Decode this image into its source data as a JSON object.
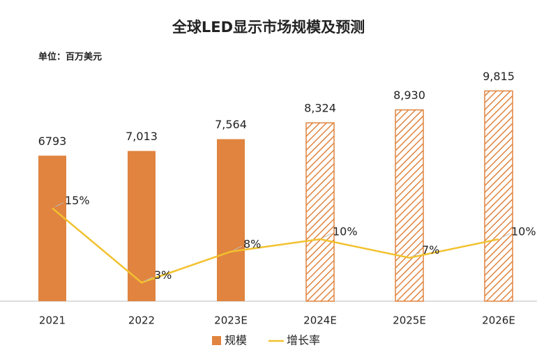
{
  "chart_data": {
    "type": "bar_line",
    "title": "全球LED显示市场规模及预测",
    "subtitle": "单位：百万美元",
    "categories": [
      "2021",
      "2022",
      "2023E",
      "2024E",
      "2025E",
      "2026E"
    ],
    "series": [
      {
        "name": "规模",
        "color": "#e0843f",
        "values": [
          6793,
          7013,
          7564,
          8324,
          8930,
          9815
        ],
        "value_labels": [
          "6793",
          "7,013",
          "7,564",
          "8,324",
          "8,930",
          "9,815"
        ],
        "hatched": [
          false,
          false,
          false,
          true,
          true,
          true
        ]
      },
      {
        "name": "增长率",
        "color": "#f2c12e",
        "axis": "y2",
        "values": [
          15,
          3,
          8,
          10,
          7,
          10
        ],
        "value_labels": [
          "15%",
          "3%",
          "8%",
          "10%",
          "7%",
          "10%"
        ]
      }
    ],
    "ylim": [
      0,
      11000
    ],
    "y2lim": [
      0,
      38
    ]
  }
}
